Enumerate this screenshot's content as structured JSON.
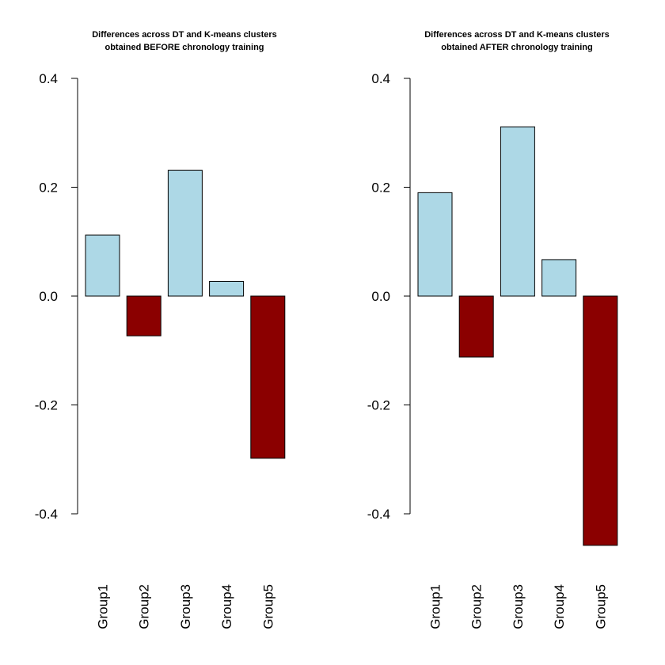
{
  "chart_data": [
    {
      "type": "bar",
      "title": "Differences across DT and K-means clusters",
      "subtitle": "obtained BEFORE chronology training",
      "categories": [
        "Group1",
        "Group2",
        "Group3",
        "Group4",
        "Group5"
      ],
      "values": [
        0.112,
        -0.073,
        0.231,
        0.027,
        -0.298
      ],
      "ylim": [
        -0.4,
        0.4
      ],
      "yticks": [
        "0.4",
        "0.2",
        "0.0",
        "-0.2",
        "-0.4"
      ],
      "grid": false,
      "colors": {
        "positive": "#add8e6",
        "negative": "#8b0000"
      }
    },
    {
      "type": "bar",
      "title": "Differences across DT and K-means clusters",
      "subtitle": "obtained AFTER chronology training",
      "categories": [
        "Group1",
        "Group2",
        "Group3",
        "Group4",
        "Group5"
      ],
      "values": [
        0.19,
        -0.112,
        0.311,
        0.067,
        -0.458
      ],
      "ylim": [
        -0.4,
        0.4
      ],
      "yticks": [
        "0.4",
        "0.2",
        "0.0",
        "-0.2",
        "-0.4"
      ],
      "grid": false,
      "colors": {
        "positive": "#add8e6",
        "negative": "#8b0000"
      }
    }
  ]
}
